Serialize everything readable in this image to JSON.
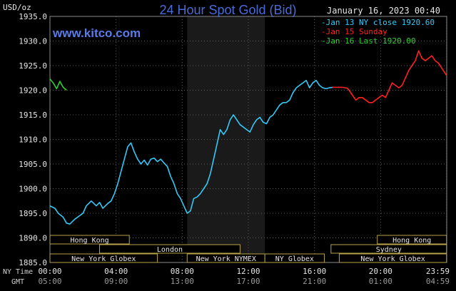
{
  "header": {
    "title": "24 Hour Spot Gold (Bid)",
    "brand": "www.kitco.com",
    "datetime": "January 16, 2023 00:40",
    "units": "USD/oz"
  },
  "legend": [
    {
      "label": "Jan 13 NY close 1920.60",
      "color": "#35c8f5"
    },
    {
      "label": "Jan 15 Sunday",
      "color": "#ff2020"
    },
    {
      "label": "Jan 16 Last 1920.00",
      "color": "#2fd02f"
    }
  ],
  "timezones": {
    "ny_label": "NY Time",
    "gmt_label": "GMT",
    "ny_ticks": [
      "00:00",
      "04:00",
      "08:00",
      "12:00",
      "16:00",
      "20:00",
      "23:59"
    ],
    "gmt_ticks": [
      "05:00",
      "09:00",
      "13:00",
      "17:00",
      "21:00",
      "01:00",
      "04:59"
    ]
  },
  "sessions": [
    {
      "label": "Hong Kong",
      "row": 0,
      "start": 0,
      "end": 4.8
    },
    {
      "label": "Hong Kong",
      "row": 0,
      "start": 19.8,
      "end": 23.99
    },
    {
      "label": "London",
      "row": 1,
      "start": 3.0,
      "end": 11.5
    },
    {
      "label": "Sydney",
      "row": 1,
      "start": 17.0,
      "end": 23.99
    },
    {
      "label": "New York Globex",
      "row": 2,
      "start": 0,
      "end": 6.5
    },
    {
      "label": "New York NYMEX",
      "row": 2,
      "start": 8.3,
      "end": 13.0
    },
    {
      "label": "NY Globex",
      "row": 2,
      "start": 13.0,
      "end": 16.6
    },
    {
      "label": "New York Globex",
      "row": 2,
      "start": 17.5,
      "end": 23.99
    }
  ],
  "colors": {
    "plot_bg": "#000000",
    "shade": "#1a1a1a",
    "grid": "#5a5a5a",
    "axis_text": "#e6e6e6",
    "session_fill": "#000000",
    "session_border": "#b8a24a"
  },
  "chart_data": {
    "type": "line",
    "xlabel": "",
    "ylabel": "USD/oz",
    "ylim": [
      1885.0,
      1935.0
    ],
    "yticks": [
      1885.0,
      1890.0,
      1895.0,
      1900.0,
      1905.0,
      1910.0,
      1915.0,
      1920.0,
      1925.0,
      1930.0,
      1935.0
    ],
    "xlim": [
      0,
      24
    ],
    "shaded_region": [
      8.3,
      13.0
    ],
    "series": [
      {
        "name": "Jan 13 NY close 1920.60",
        "color": "#35c8f5",
        "x": [
          0.0,
          0.3,
          0.5,
          0.8,
          1.0,
          1.2,
          1.5,
          1.8,
          2.0,
          2.2,
          2.5,
          2.8,
          3.0,
          3.2,
          3.5,
          3.7,
          3.9,
          4.1,
          4.3,
          4.5,
          4.7,
          4.9,
          5.1,
          5.3,
          5.5,
          5.7,
          5.9,
          6.1,
          6.3,
          6.5,
          6.7,
          6.9,
          7.1,
          7.3,
          7.5,
          7.7,
          7.9,
          8.1,
          8.3,
          8.5,
          8.7,
          8.9,
          9.1,
          9.3,
          9.5,
          9.7,
          9.9,
          10.1,
          10.3,
          10.5,
          10.7,
          10.9,
          11.1,
          11.3,
          11.5,
          11.7,
          11.9,
          12.1,
          12.3,
          12.5,
          12.7,
          12.9,
          13.1,
          13.3,
          13.5,
          13.7,
          13.9,
          14.1,
          14.3,
          14.5,
          14.7,
          14.9,
          15.1,
          15.3,
          15.5,
          15.7,
          15.9,
          16.1,
          16.3,
          16.5,
          16.7,
          16.9,
          17.1
        ],
        "y": [
          1896.5,
          1896.0,
          1895.0,
          1894.2,
          1893.0,
          1892.8,
          1893.8,
          1894.5,
          1895.0,
          1896.5,
          1897.5,
          1896.5,
          1897.2,
          1896.0,
          1897.0,
          1897.5,
          1899.0,
          1901.0,
          1903.5,
          1906.0,
          1908.5,
          1909.3,
          1907.5,
          1906.0,
          1905.0,
          1905.8,
          1904.8,
          1906.0,
          1906.2,
          1905.5,
          1906.0,
          1905.2,
          1904.5,
          1902.5,
          1901.0,
          1899.0,
          1898.0,
          1896.5,
          1895.0,
          1895.5,
          1898.0,
          1898.3,
          1899.0,
          1900.0,
          1901.0,
          1903.0,
          1906.0,
          1909.0,
          1912.0,
          1911.0,
          1912.0,
          1914.0,
          1915.0,
          1914.0,
          1913.0,
          1912.5,
          1912.0,
          1911.5,
          1913.0,
          1914.0,
          1914.5,
          1913.5,
          1913.2,
          1914.5,
          1915.0,
          1916.0,
          1917.0,
          1917.5,
          1917.5,
          1918.0,
          1919.5,
          1920.5,
          1921.0,
          1921.5,
          1922.0,
          1920.5,
          1921.5,
          1922.0,
          1921.0,
          1920.5,
          1920.3,
          1920.5,
          1920.6
        ]
      },
      {
        "name": "Jan 15 Sunday",
        "color": "#ff2020",
        "x": [
          17.1,
          17.4,
          17.7,
          18.0,
          18.2,
          18.5,
          18.7,
          18.9,
          19.1,
          19.3,
          19.5,
          19.7,
          19.9,
          20.1,
          20.3,
          20.5,
          20.7,
          20.9,
          21.1,
          21.3,
          21.5,
          21.7,
          21.9,
          22.1,
          22.3,
          22.5,
          22.7,
          22.9,
          23.1,
          23.3,
          23.5,
          23.7,
          23.99
        ],
        "y": [
          1920.6,
          1920.6,
          1920.6,
          1920.4,
          1919.5,
          1918.0,
          1918.5,
          1918.5,
          1918.0,
          1917.5,
          1917.5,
          1918.0,
          1918.5,
          1919.0,
          1918.5,
          1920.0,
          1921.5,
          1921.0,
          1920.5,
          1921.0,
          1922.5,
          1924.0,
          1925.0,
          1926.0,
          1928.0,
          1926.5,
          1926.0,
          1926.5,
          1927.0,
          1926.0,
          1925.5,
          1924.5,
          1923.0
        ]
      },
      {
        "name": "Jan 16 Last 1920.00",
        "color": "#2fd02f",
        "x": [
          0.0,
          0.2,
          0.4,
          0.6,
          0.8,
          1.0
        ],
        "y": [
          1922.3,
          1921.5,
          1920.3,
          1921.8,
          1920.6,
          1920.0
        ]
      }
    ]
  }
}
